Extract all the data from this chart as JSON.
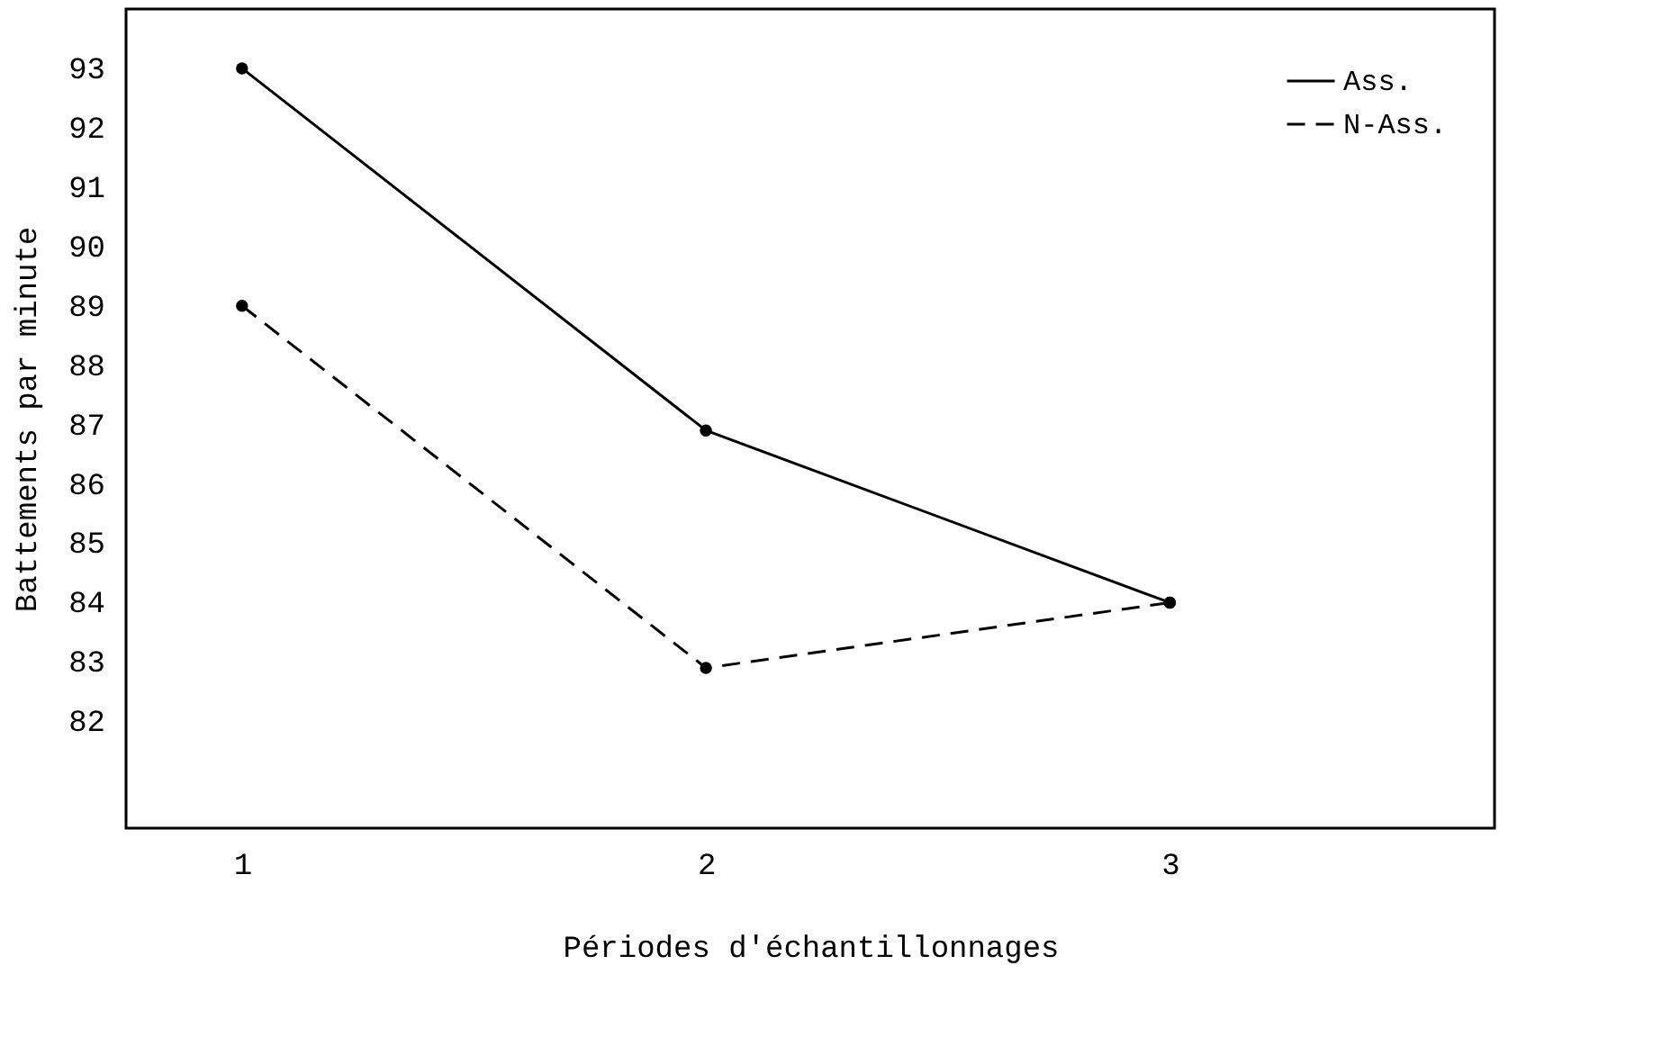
{
  "chart_data": {
    "type": "line",
    "xlabel": "Périodes d'échantillonnages",
    "ylabel": "Battements par minute",
    "x": [
      1,
      2,
      3
    ],
    "series": [
      {
        "name": "Ass.",
        "color": "#000000",
        "values": [
          93,
          86.9,
          84
        ],
        "line_style": "solid"
      },
      {
        "name": "N-Ass.",
        "color": "#000000",
        "values": [
          89,
          82.9,
          84
        ],
        "line_style": "dashed"
      }
    ],
    "xlim": [
      0.75,
      3.7
    ],
    "xticks": [
      1,
      2,
      3
    ],
    "ylim": [
      80.2,
      94
    ],
    "yticks": [
      82,
      83,
      84,
      85,
      86,
      87,
      88,
      89,
      90,
      91,
      92,
      93
    ],
    "grid": false,
    "legend": "top right",
    "marker": "circle"
  }
}
